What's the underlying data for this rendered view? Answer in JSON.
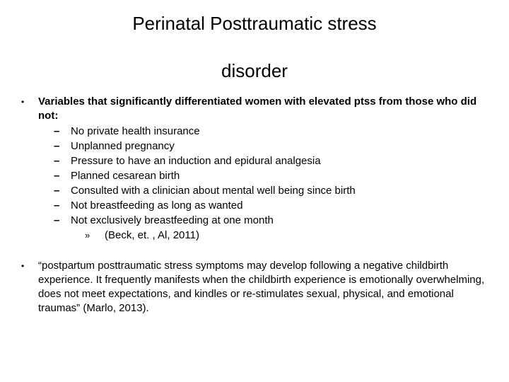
{
  "colors": {
    "background": "#ffffff",
    "text": "#000000"
  },
  "typography": {
    "font_family": "Arial",
    "title_fontsize": 26,
    "body_fontsize": 15,
    "citation_fontsize": 15
  },
  "title_line1": "Perinatal Posttraumatic stress",
  "title_line2": "disorder",
  "block1": {
    "intro": "Variables that significantly differentiated women with elevated ptss from those who did not:",
    "items": [
      "No private health insurance",
      "Unplanned pregnancy",
      "Pressure to have an induction and epidural analgesia",
      "Planned cesarean birth",
      "Consulted with a clinician about mental well being since birth",
      "Not breastfeeding as long as wanted",
      "Not exclusively breastfeeding at one month"
    ],
    "citation": "(Beck, et. , Al, 2011)"
  },
  "block2": {
    "quote": "“postpartum posttraumatic stress symptoms may develop following a negative childbirth experience. It frequently manifests when the childbirth experience is emotionally overwhelming, does not meet expectations, and kindles or re-stimulates sexual, physical, and emotional traumas” (Marlo, 2013)."
  }
}
